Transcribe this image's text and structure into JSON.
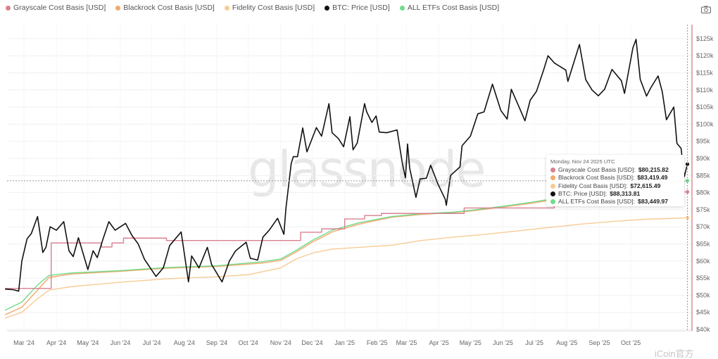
{
  "legend": [
    {
      "label": "Grayscale Cost Basis [USD]",
      "color": "#d9808f"
    },
    {
      "label": "Blackrock Cost Basis [USD]",
      "color": "#f4a86a"
    },
    {
      "label": "Fidelity Cost Basis [USD]",
      "color": "#f8cb94"
    },
    {
      "label": "BTC: Price [USD]",
      "color": "#111111"
    },
    {
      "label": "ALL ETFs Cost Basis [USD]",
      "color": "#6fdc8c"
    }
  ],
  "toolbar": {
    "camera_icon": "camera-icon"
  },
  "watermark": {
    "text": "glassnode",
    "source_mark": "iCoin官方"
  },
  "tooltip": {
    "date": "Monday, Nov 24 2025 UTC",
    "rows": [
      {
        "label": "Grayscale Cost Basis [USD]:",
        "value": "$80,215.82",
        "color": "#d9808f"
      },
      {
        "label": "Blackrock Cost Basis [USD]:",
        "value": "$83,419.49",
        "color": "#f4a86a"
      },
      {
        "label": "Fidelity Cost Basis [USD]:",
        "value": "$72,615.49",
        "color": "#f8cb94"
      },
      {
        "label": "BTC: Price [USD]:",
        "value": "$88,313.81",
        "color": "#111111"
      },
      {
        "label": "ALL ETFs Cost Basis [USD]:",
        "value": "$83,449.97",
        "color": "#6fdc8c"
      }
    ]
  },
  "chart_data": {
    "type": "line",
    "title": "",
    "xlabel": "",
    "ylabel": "",
    "xlim": [
      "2024-02-11",
      "2025-11-30"
    ],
    "ylim": [
      39000,
      129000
    ],
    "grid": true,
    "legend_position": "top-left",
    "crosshair": {
      "date": "2025-11-24",
      "value": 83449.97
    },
    "x_ticks": [
      "Mar '24",
      "Apr '24",
      "May '24",
      "Jun '24",
      "Jul '24",
      "Aug '24",
      "Sep '24",
      "Oct '24",
      "Nov '24",
      "Dec '24",
      "Jan '25",
      "Feb '25",
      "Mar '25",
      "Apr '25",
      "May '25",
      "Jun '25",
      "Jul '25",
      "Aug '25",
      "Sep '25",
      "Oct '25"
    ],
    "y_ticks": [
      "$40k",
      "$45k",
      "$50k",
      "$55k",
      "$60k",
      "$65k",
      "$70k",
      "$75k",
      "$80k",
      "$85k",
      "$90k",
      "$95k",
      "$100k",
      "$105k",
      "$110k",
      "$115k",
      "$120k",
      "$125k"
    ],
    "series": [
      {
        "name": "Fidelity Cost Basis [USD]",
        "color": "#f8cb94",
        "step": false,
        "points": [
          [
            "2024-02-12",
            43.3
          ],
          [
            "2024-02-28",
            45
          ],
          [
            "2024-03-14",
            49
          ],
          [
            "2024-03-25",
            51.5
          ],
          [
            "2024-04-15",
            52.5
          ],
          [
            "2024-06-01",
            53.8
          ],
          [
            "2024-07-15",
            54.8
          ],
          [
            "2024-09-01",
            55.4
          ],
          [
            "2024-10-01",
            56
          ],
          [
            "2024-11-01",
            58
          ],
          [
            "2024-11-15",
            60.5
          ],
          [
            "2024-12-01",
            62.3
          ],
          [
            "2024-12-20",
            63.5
          ],
          [
            "2025-01-15",
            64
          ],
          [
            "2025-02-15",
            64.6
          ],
          [
            "2025-03-15",
            66
          ],
          [
            "2025-04-15",
            67
          ],
          [
            "2025-05-15",
            67.8
          ],
          [
            "2025-06-15",
            68.8
          ],
          [
            "2025-07-15",
            69.8
          ],
          [
            "2025-08-15",
            70.8
          ],
          [
            "2025-09-15",
            71.6
          ],
          [
            "2025-10-15",
            72.2
          ],
          [
            "2025-11-24",
            72.615
          ]
        ]
      },
      {
        "name": "Blackrock Cost Basis [USD]",
        "color": "#f4a86a",
        "step": false,
        "points": [
          [
            "2024-02-12",
            44.3
          ],
          [
            "2024-02-28",
            46.5
          ],
          [
            "2024-03-14",
            51.5
          ],
          [
            "2024-03-25",
            55.2
          ],
          [
            "2024-04-15",
            56.2
          ],
          [
            "2024-06-01",
            57
          ],
          [
            "2024-07-15",
            57.9
          ],
          [
            "2024-09-01",
            58.4
          ],
          [
            "2024-10-15",
            59.4
          ],
          [
            "2024-11-01",
            60.2
          ],
          [
            "2024-11-15",
            62.5
          ],
          [
            "2024-12-01",
            65.5
          ],
          [
            "2024-12-20",
            68.5
          ],
          [
            "2025-01-15",
            70.8
          ],
          [
            "2025-02-15",
            72.8
          ],
          [
            "2025-03-15",
            73.6
          ],
          [
            "2025-04-15",
            74.2
          ],
          [
            "2025-05-01",
            74.6
          ],
          [
            "2025-06-01",
            75.8
          ],
          [
            "2025-07-01",
            77
          ],
          [
            "2025-08-01",
            78.6
          ],
          [
            "2025-09-01",
            80
          ],
          [
            "2025-10-01",
            81.8
          ],
          [
            "2025-11-24",
            83.419
          ]
        ]
      },
      {
        "name": "ALL ETFs Cost Basis [USD]",
        "color": "#6fdc8c",
        "step": false,
        "points": [
          [
            "2024-02-12",
            45.6
          ],
          [
            "2024-02-28",
            48
          ],
          [
            "2024-03-14",
            53
          ],
          [
            "2024-03-25",
            55.8
          ],
          [
            "2024-04-15",
            56.5
          ],
          [
            "2024-06-01",
            57.2
          ],
          [
            "2024-07-15",
            58.1
          ],
          [
            "2024-09-01",
            58.6
          ],
          [
            "2024-10-15",
            59.8
          ],
          [
            "2024-11-01",
            60.6
          ],
          [
            "2024-11-15",
            63
          ],
          [
            "2024-12-01",
            66
          ],
          [
            "2024-12-20",
            69
          ],
          [
            "2025-01-15",
            71.2
          ],
          [
            "2025-02-15",
            73
          ],
          [
            "2025-03-15",
            73.8
          ],
          [
            "2025-04-15",
            74.3
          ],
          [
            "2025-05-01",
            74.8
          ],
          [
            "2025-06-01",
            76
          ],
          [
            "2025-07-01",
            77.3
          ],
          [
            "2025-08-01",
            78.9
          ],
          [
            "2025-09-01",
            80.3
          ],
          [
            "2025-10-01",
            82
          ],
          [
            "2025-11-24",
            83.45
          ]
        ]
      },
      {
        "name": "Grayscale Cost Basis [USD]",
        "color": "#d9808f",
        "step": true,
        "points": [
          [
            "2024-02-12",
            52
          ],
          [
            "2024-03-27",
            65.3
          ],
          [
            "2024-05-14",
            64.1
          ],
          [
            "2024-05-24",
            65.3
          ],
          [
            "2024-06-04",
            66.7
          ],
          [
            "2024-07-15",
            66
          ],
          [
            "2024-10-20",
            66
          ],
          [
            "2024-11-20",
            68.4
          ],
          [
            "2024-12-10",
            69.4
          ],
          [
            "2025-01-01",
            72.3
          ],
          [
            "2025-01-20",
            73.3
          ],
          [
            "2025-02-05",
            73.9
          ],
          [
            "2025-04-25",
            75.5
          ],
          [
            "2025-07-20",
            77.2
          ],
          [
            "2025-08-20",
            80.2
          ],
          [
            "2025-11-24",
            80.216
          ]
        ]
      },
      {
        "name": "BTC: Price [USD]",
        "color": "#111111",
        "step": false,
        "points": [
          [
            "2024-02-12",
            51.8
          ],
          [
            "2024-02-20",
            51.6
          ],
          [
            "2024-02-25",
            51.2
          ],
          [
            "2024-02-28",
            60
          ],
          [
            "2024-03-04",
            66.5
          ],
          [
            "2024-03-08",
            68
          ],
          [
            "2024-03-14",
            73
          ],
          [
            "2024-03-19",
            62.5
          ],
          [
            "2024-03-22",
            64
          ],
          [
            "2024-03-26",
            70
          ],
          [
            "2024-04-01",
            69
          ],
          [
            "2024-04-08",
            71.5
          ],
          [
            "2024-04-13",
            63
          ],
          [
            "2024-04-17",
            61.3
          ],
          [
            "2024-04-22",
            66.8
          ],
          [
            "2024-05-01",
            57.5
          ],
          [
            "2024-05-06",
            63
          ],
          [
            "2024-05-10",
            61
          ],
          [
            "2024-05-15",
            66
          ],
          [
            "2024-05-21",
            71.5
          ],
          [
            "2024-05-27",
            69
          ],
          [
            "2024-06-06",
            71
          ],
          [
            "2024-06-12",
            67.5
          ],
          [
            "2024-06-18",
            65
          ],
          [
            "2024-06-24",
            60.5
          ],
          [
            "2024-07-05",
            55.5
          ],
          [
            "2024-07-12",
            58
          ],
          [
            "2024-07-18",
            64.5
          ],
          [
            "2024-07-29",
            68.5
          ],
          [
            "2024-08-05",
            53.9
          ],
          [
            "2024-08-08",
            61.5
          ],
          [
            "2024-08-15",
            58
          ],
          [
            "2024-08-23",
            64
          ],
          [
            "2024-08-27",
            59
          ],
          [
            "2024-09-06",
            53.9
          ],
          [
            "2024-09-13",
            60
          ],
          [
            "2024-09-19",
            63
          ],
          [
            "2024-09-29",
            65.5
          ],
          [
            "2024-10-03",
            60.8
          ],
          [
            "2024-10-10",
            60.3
          ],
          [
            "2024-10-15",
            67
          ],
          [
            "2024-10-21",
            69
          ],
          [
            "2024-10-29",
            72.5
          ],
          [
            "2024-11-04",
            67.8
          ],
          [
            "2024-11-06",
            75.5
          ],
          [
            "2024-11-11",
            88.5
          ],
          [
            "2024-11-13",
            90.5
          ],
          [
            "2024-11-17",
            90.5
          ],
          [
            "2024-11-22",
            98.9
          ],
          [
            "2024-11-26",
            91.9
          ],
          [
            "2024-12-05",
            99
          ],
          [
            "2024-12-10",
            96.5
          ],
          [
            "2024-12-17",
            106
          ],
          [
            "2024-12-20",
            97.5
          ],
          [
            "2024-12-26",
            95.8
          ],
          [
            "2024-12-31",
            93.4
          ],
          [
            "2025-01-06",
            102.2
          ],
          [
            "2025-01-09",
            92.5
          ],
          [
            "2025-01-13",
            94.5
          ],
          [
            "2025-01-20",
            106
          ],
          [
            "2025-01-22",
            103.6
          ],
          [
            "2025-01-27",
            100.5
          ],
          [
            "2025-01-31",
            102.4
          ],
          [
            "2025-02-03",
            97.7
          ],
          [
            "2025-02-10",
            97.5
          ],
          [
            "2025-02-20",
            98.3
          ],
          [
            "2025-02-25",
            88.6
          ],
          [
            "2025-02-28",
            84.3
          ],
          [
            "2025-03-02",
            94.2
          ],
          [
            "2025-03-04",
            87.2
          ],
          [
            "2025-03-10",
            78.6
          ],
          [
            "2025-03-14",
            84
          ],
          [
            "2025-03-20",
            84.2
          ],
          [
            "2025-03-24",
            88
          ],
          [
            "2025-03-31",
            82.5
          ],
          [
            "2025-04-07",
            78
          ],
          [
            "2025-04-08",
            76.3
          ],
          [
            "2025-04-12",
            85
          ],
          [
            "2025-04-21",
            87.5
          ],
          [
            "2025-04-23",
            93.7
          ],
          [
            "2025-05-01",
            96.5
          ],
          [
            "2025-05-08",
            103
          ],
          [
            "2025-05-14",
            103.6
          ],
          [
            "2025-05-22",
            111.7
          ],
          [
            "2025-05-30",
            104
          ],
          [
            "2025-06-05",
            101.5
          ],
          [
            "2025-06-09",
            110.2
          ],
          [
            "2025-06-17",
            104.6
          ],
          [
            "2025-06-22",
            101
          ],
          [
            "2025-06-27",
            107
          ],
          [
            "2025-07-03",
            109.6
          ],
          [
            "2025-07-10",
            116
          ],
          [
            "2025-07-14",
            120
          ],
          [
            "2025-07-20",
            117.9
          ],
          [
            "2025-07-31",
            115.8
          ],
          [
            "2025-08-02",
            112.5
          ],
          [
            "2025-08-13",
            123.3
          ],
          [
            "2025-08-19",
            113
          ],
          [
            "2025-08-25",
            110
          ],
          [
            "2025-08-31",
            108.3
          ],
          [
            "2025-09-06",
            110.2
          ],
          [
            "2025-09-13",
            116
          ],
          [
            "2025-09-22",
            112.7
          ],
          [
            "2025-09-25",
            109
          ],
          [
            "2025-10-03",
            122.3
          ],
          [
            "2025-10-06",
            124.8
          ],
          [
            "2025-10-10",
            113.1
          ],
          [
            "2025-10-16",
            108.2
          ],
          [
            "2025-10-20",
            110.6
          ],
          [
            "2025-10-27",
            114.1
          ],
          [
            "2025-10-31",
            109.5
          ],
          [
            "2025-11-04",
            101.3
          ],
          [
            "2025-11-11",
            105
          ],
          [
            "2025-11-14",
            94.4
          ],
          [
            "2025-11-18",
            92.9
          ],
          [
            "2025-11-21",
            84.6
          ],
          [
            "2025-11-24",
            88.31
          ]
        ]
      }
    ],
    "value_unit": "thousand USD"
  }
}
